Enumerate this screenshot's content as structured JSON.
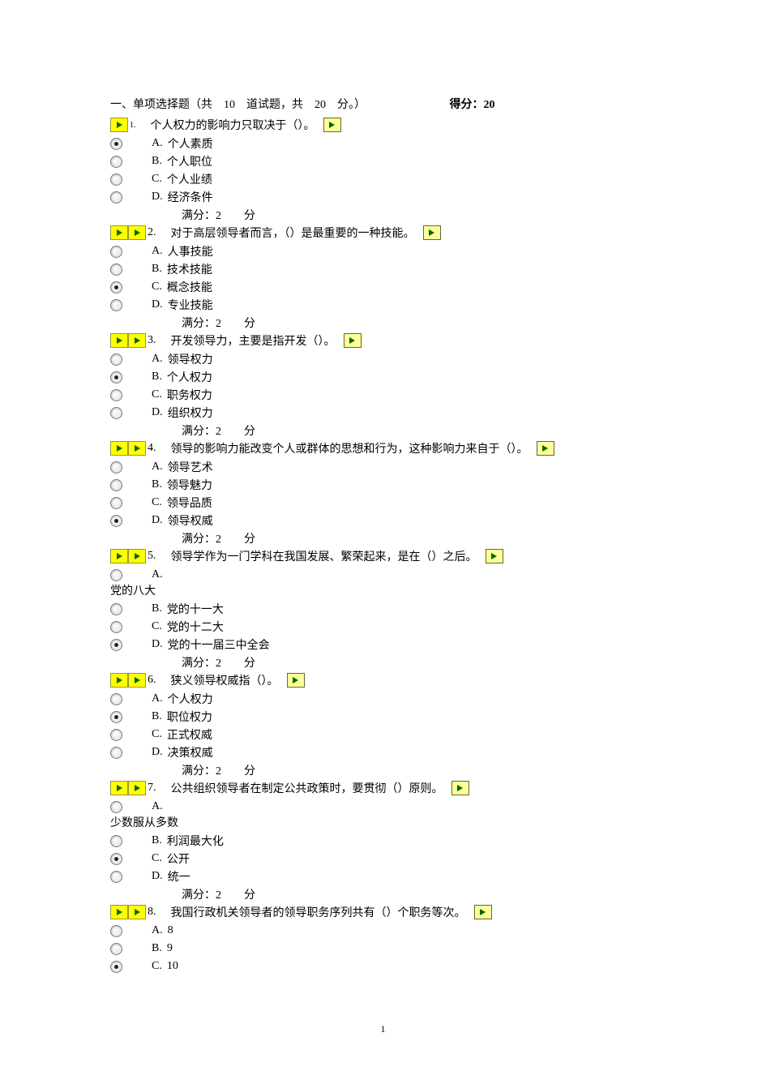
{
  "section": {
    "title": "一、单项选择题（共　10　道试题，共　20　分。）",
    "score_label": "得分：20"
  },
  "score_text": "满分：2　　分",
  "page_number": "1",
  "questions": [
    {
      "num": "1.",
      "num_small": true,
      "single_icon": true,
      "text": "个人权力的影响力只取决于（）。",
      "trailing_icon": true,
      "options": [
        {
          "letter": "A.",
          "text": "个人素质",
          "checked": true
        },
        {
          "letter": "B.",
          "text": "个人职位",
          "checked": false
        },
        {
          "letter": "C.",
          "text": "个人业绩",
          "checked": false
        },
        {
          "letter": "D.",
          "text": "经济条件",
          "checked": false
        }
      ]
    },
    {
      "num": "2.",
      "text": "对于高层领导者而言，（）是最重要的一种技能。",
      "trailing_icon": true,
      "options": [
        {
          "letter": "A.",
          "text": "人事技能",
          "checked": false
        },
        {
          "letter": "B.",
          "text": "技术技能",
          "checked": false
        },
        {
          "letter": "C.",
          "text": "概念技能",
          "checked": true
        },
        {
          "letter": "D.",
          "text": "专业技能",
          "checked": false
        }
      ]
    },
    {
      "num": "3.",
      "text": "开发领导力，主要是指开发（）。",
      "trailing_icon": true,
      "options": [
        {
          "letter": "A.",
          "text": "领导权力",
          "checked": false
        },
        {
          "letter": "B.",
          "text": "个人权力",
          "checked": true
        },
        {
          "letter": "C.",
          "text": "职务权力",
          "checked": false
        },
        {
          "letter": "D.",
          "text": "组织权力",
          "checked": false
        }
      ]
    },
    {
      "num": "4.",
      "text": "领导的影响力能改变个人或群体的思想和行为，这种影响力来自于（）。",
      "trailing_icon": true,
      "options": [
        {
          "letter": "A.",
          "text": "领导艺术",
          "checked": false
        },
        {
          "letter": "B.",
          "text": "领导魅力",
          "checked": false
        },
        {
          "letter": "C.",
          "text": "领导品质",
          "checked": false
        },
        {
          "letter": "D.",
          "text": "领导权威",
          "checked": true
        }
      ]
    },
    {
      "num": "5.",
      "text": "领导学作为一门学科在我国发展、繁荣起来，是在（）之后。",
      "trailing_icon": true,
      "options": [
        {
          "letter": "A.",
          "text": "",
          "checked": false,
          "wrapped": "党的八大"
        },
        {
          "letter": "B.",
          "text": "党的十一大",
          "checked": false
        },
        {
          "letter": "C.",
          "text": "党的十二大",
          "checked": false
        },
        {
          "letter": "D.",
          "text": "党的十一届三中全会",
          "checked": true
        }
      ]
    },
    {
      "num": "6.",
      "text": "狭义领导权威指（）。",
      "trailing_icon": true,
      "options": [
        {
          "letter": "A.",
          "text": "个人权力",
          "checked": false
        },
        {
          "letter": "B.",
          "text": "职位权力",
          "checked": true
        },
        {
          "letter": "C.",
          "text": "正式权威",
          "checked": false
        },
        {
          "letter": "D.",
          "text": "决策权威",
          "checked": false
        }
      ]
    },
    {
      "num": "7.",
      "text": "公共组织领导者在制定公共政策时，要贯彻（）原则。",
      "trailing_icon": true,
      "options": [
        {
          "letter": "A.",
          "text": "",
          "checked": false,
          "wrapped": "少数服从多数"
        },
        {
          "letter": "B.",
          "text": "利润最大化",
          "checked": false
        },
        {
          "letter": "C.",
          "text": "公开",
          "checked": true
        },
        {
          "letter": "D.",
          "text": "统一",
          "checked": false
        }
      ]
    },
    {
      "num": "8.",
      "text": "我国行政机关领导者的领导职务序列共有（）个职务等次。",
      "trailing_icon": true,
      "no_score": true,
      "options": [
        {
          "letter": "A.",
          "text": "8",
          "checked": false
        },
        {
          "letter": "B.",
          "text": "9",
          "checked": false
        },
        {
          "letter": "C.",
          "text": "10",
          "checked": true
        }
      ]
    }
  ]
}
